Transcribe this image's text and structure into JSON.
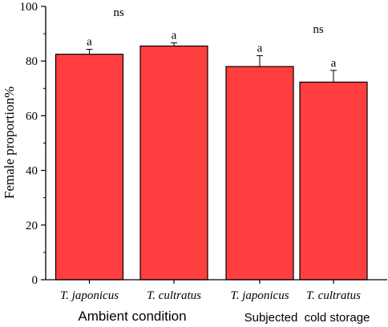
{
  "chart_data": {
    "type": "bar",
    "title": "",
    "xlabel": "",
    "ylabel": "Female proportion%",
    "ylim": [
      0,
      100
    ],
    "yticks": [
      0,
      20,
      40,
      60,
      80,
      100
    ],
    "grid": false,
    "categories": [
      "T. japonicus",
      "T. cultratus",
      "T. japonicus",
      "T. cultratus"
    ],
    "values": [
      82.5,
      85.5,
      78.0,
      72.3
    ],
    "errors": [
      1.8,
      1.2,
      4.0,
      4.3
    ],
    "bar_labels": [
      "a",
      "a",
      "a",
      "a"
    ],
    "groups": [
      {
        "label": "Ambient condition",
        "categories": [
          0,
          1
        ],
        "significance": "ns"
      },
      {
        "label": "Subjected  cold storage",
        "categories": [
          2,
          3
        ],
        "significance": "ns"
      }
    ],
    "bar_color": "#ff3f3f",
    "edge_color": "#000000"
  }
}
